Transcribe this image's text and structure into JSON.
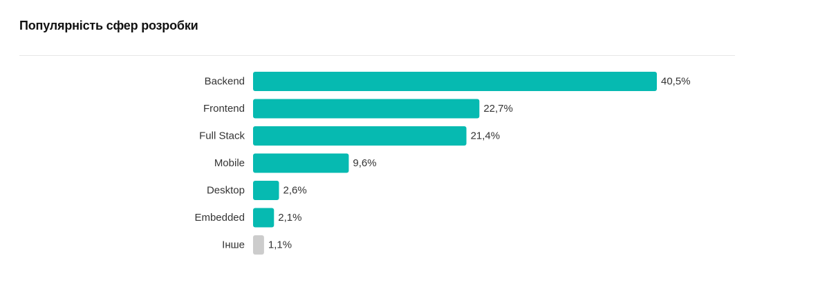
{
  "chart_data": {
    "type": "bar",
    "orientation": "horizontal",
    "title": "Популярність сфер розробки",
    "categories": [
      "Backend",
      "Frontend",
      "Full Stack",
      "Mobile",
      "Desktop",
      "Embedded",
      "Інше"
    ],
    "values": [
      40.5,
      22.7,
      21.4,
      9.6,
      2.6,
      2.1,
      1.1
    ],
    "value_labels": [
      "40,5%",
      "22,7%",
      "21,4%",
      "9,6%",
      "2,6%",
      "2,1%",
      "1,1%"
    ],
    "unit": "%",
    "xlim": [
      0,
      40.5
    ],
    "grid": false,
    "legend": "none",
    "colors": {
      "primary": "#06bab1",
      "other": "#cccccc"
    },
    "bar_colors": [
      "primary",
      "primary",
      "primary",
      "primary",
      "primary",
      "primary",
      "other"
    ]
  }
}
